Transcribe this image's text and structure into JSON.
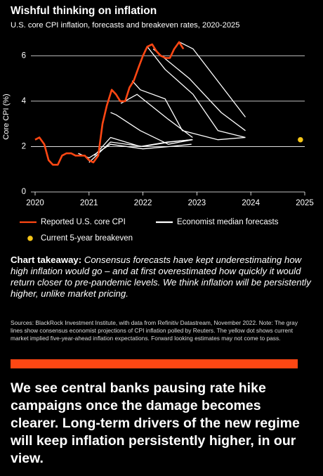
{
  "chart_data": {
    "type": "line",
    "title": "Wishful thinking on inflation",
    "subtitle": "U.S. core CPI inflation, forecasts and breakeven rates, 2020-2025",
    "y_label": "Core CPI (%)",
    "xlim": [
      2020,
      2025
    ],
    "xticks": [
      2020,
      2021,
      2022,
      2023,
      2024,
      2025
    ],
    "ylim": [
      0,
      7
    ],
    "yticks": [
      0,
      2,
      4,
      6
    ],
    "grid": true,
    "series": [
      {
        "name": "Reported U.S. core CPI",
        "color": "#ff4713",
        "x": [
          2020.0,
          2020.08,
          2020.17,
          2020.25,
          2020.33,
          2020.42,
          2020.5,
          2020.58,
          2020.67,
          2020.75,
          2020.83,
          2020.92,
          2021.0,
          2021.08,
          2021.17,
          2021.25,
          2021.33,
          2021.42,
          2021.5,
          2021.58,
          2021.67,
          2021.75,
          2021.83,
          2021.92,
          2022.0,
          2022.08,
          2022.17,
          2022.25,
          2022.33,
          2022.42,
          2022.5,
          2022.58,
          2022.67,
          2022.75
        ],
        "values": [
          2.3,
          2.4,
          2.1,
          1.4,
          1.2,
          1.2,
          1.6,
          1.7,
          1.7,
          1.6,
          1.6,
          1.6,
          1.4,
          1.3,
          1.6,
          3.0,
          3.8,
          4.5,
          4.3,
          4.0,
          4.0,
          4.6,
          4.9,
          5.5,
          6.0,
          6.4,
          6.5,
          6.2,
          6.0,
          5.9,
          5.9,
          6.3,
          6.6,
          6.3
        ]
      },
      {
        "name": "Economist median forecasts",
        "color": "#ffffff",
        "lines": [
          {
            "x": [
              2020.8,
              2021.0,
              2021.4,
              2022.0,
              2022.5,
              2022.9
            ],
            "values": [
              1.7,
              1.5,
              2.1,
              1.9,
              2.0,
              2.1
            ]
          },
          {
            "x": [
              2021.0,
              2021.4,
              2022.0,
              2022.5,
              2022.9
            ],
            "values": [
              1.3,
              2.2,
              2.0,
              2.2,
              2.3
            ]
          },
          {
            "x": [
              2021.1,
              2021.4,
              2021.95,
              2022.45,
              2022.92
            ],
            "values": [
              1.6,
              2.4,
              2.0,
              2.2,
              2.3
            ]
          },
          {
            "x": [
              2021.4,
              2021.5,
              2021.95,
              2022.47,
              2022.92
            ],
            "values": [
              3.5,
              3.4,
              2.7,
              2.1,
              2.3
            ]
          },
          {
            "x": [
              2021.59,
              2021.89,
              2022.47,
              2022.92
            ],
            "values": [
              3.9,
              4.3,
              3.2,
              2.4
            ]
          },
          {
            "x": [
              2021.8,
              2021.95,
              2022.41,
              2022.73,
              2023.39,
              2023.9
            ],
            "values": [
              4.9,
              4.5,
              4.1,
              2.7,
              2.3,
              2.4
            ]
          },
          {
            "x": [
              2022.08,
              2022.41,
              2022.93,
              2023.39,
              2023.9
            ],
            "values": [
              6.4,
              5.4,
              4.3,
              2.7,
              2.4
            ]
          },
          {
            "x": [
              2022.19,
              2022.86,
              2023.45,
              2023.9
            ],
            "values": [
              6.3,
              5.0,
              3.5,
              2.7
            ]
          },
          {
            "x": [
              2022.68,
              2022.93,
              2023.9
            ],
            "values": [
              6.6,
              6.3,
              3.3
            ]
          }
        ]
      },
      {
        "name": "Current 5-year breakeven",
        "color": "#f5c518",
        "marker": "dot",
        "x": [
          2024.92
        ],
        "values": [
          2.3
        ]
      }
    ]
  },
  "takeaway": {
    "label": "Chart takeaway:",
    "text": "Consensus forecasts have kept underestimating how high inflation would go – and at first overestimated how quickly it would return closer to pre-pandemic levels. We think inflation will be persistently higher, unlike market pricing."
  },
  "sources": "Sources: BlackRock Investment Institute, with data from Refinitiv Datastream, November 2022. Note: The gray lines show consensus economist projections of CPI inflation polled by Reuters. The yellow dot shows current market implied five-year-ahead inflation expectations. Forward looking estimates may not come to pass.",
  "conclusion": "We see central banks pausing rate hike campaigns once the damage becomes clearer. Long-term drivers of the new regime will keep inflation persistently higher, in our view."
}
